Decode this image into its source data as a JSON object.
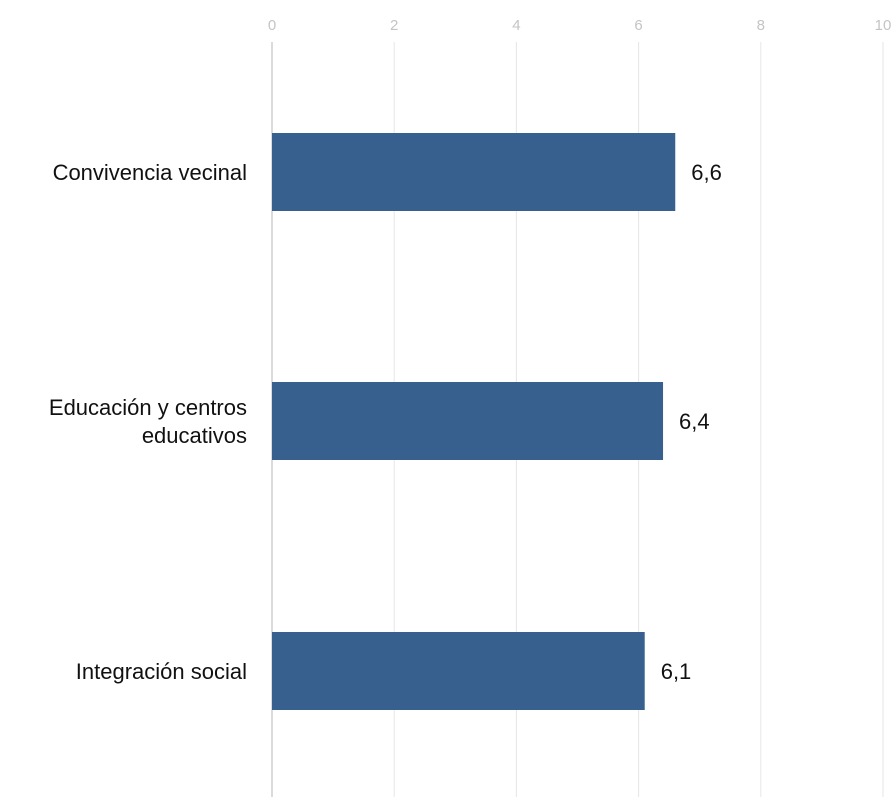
{
  "chart_data": {
    "type": "bar",
    "orientation": "horizontal",
    "title": "",
    "xlabel": "",
    "ylabel": "",
    "categories": [
      [
        "Convivencia vecinal"
      ],
      [
        "Educación y centros",
        "educativos"
      ],
      [
        "Integración social"
      ]
    ],
    "values": [
      6.6,
      6.4,
      6.1
    ],
    "value_labels": [
      "6,6",
      "6,4",
      "6,1"
    ],
    "xlim": [
      0,
      10
    ],
    "ticks": [
      0,
      2,
      4,
      6,
      8,
      10
    ],
    "tick_labels": [
      "0",
      "2",
      "4",
      "6",
      "8",
      "10"
    ],
    "tick_position": "top",
    "grid": true,
    "legend": "none"
  },
  "colors": {
    "bar": "#37608f",
    "grid": "#e6e6e6",
    "axis": "#cfcfcf"
  }
}
